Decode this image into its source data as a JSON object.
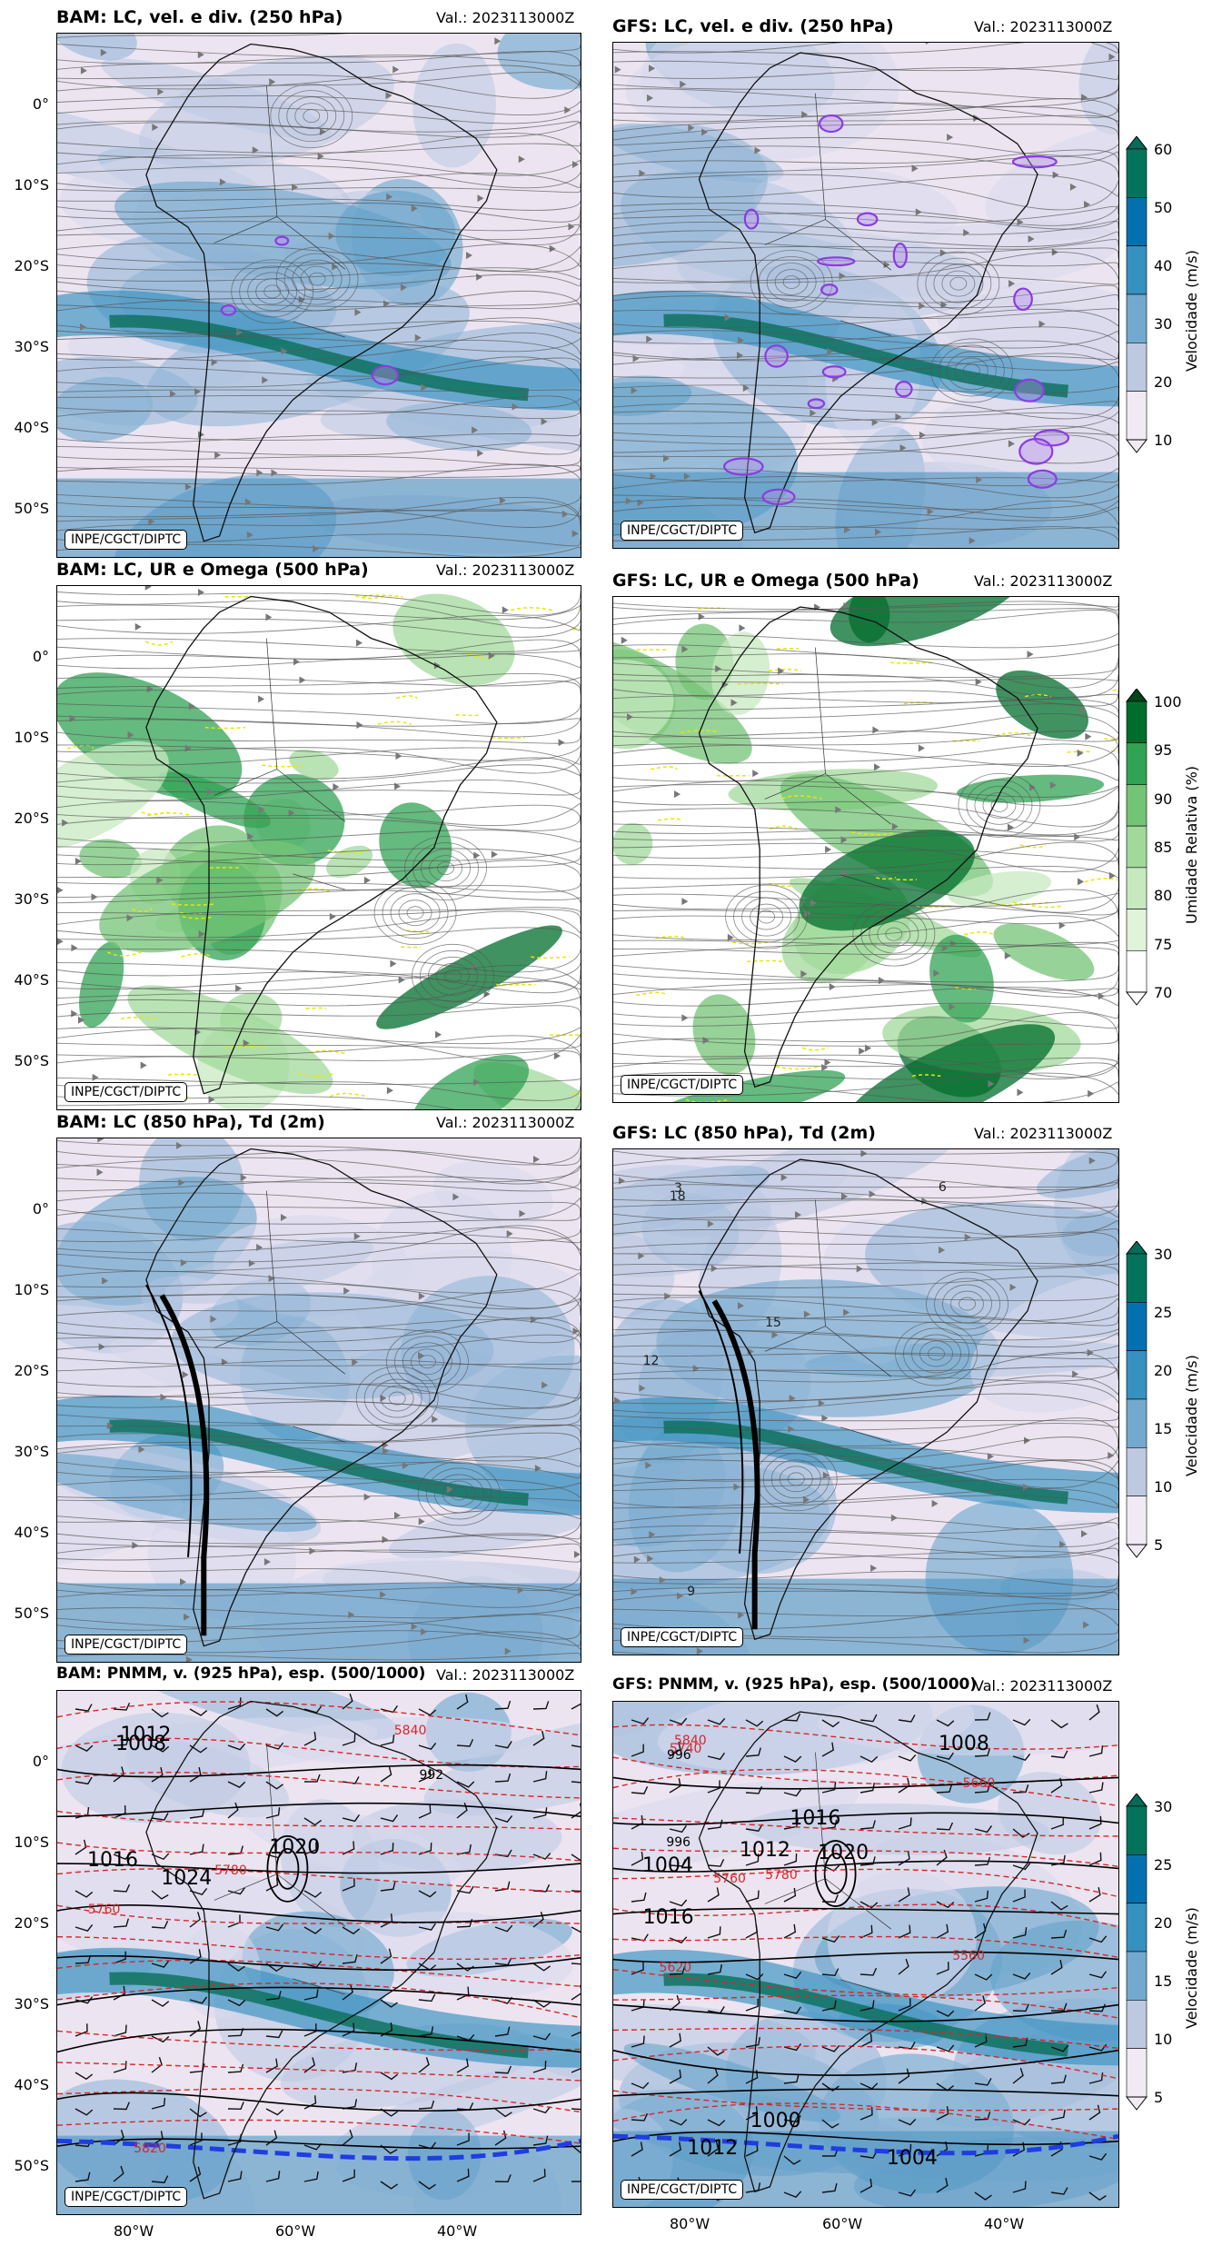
{
  "panels": [
    {
      "id": "p1",
      "title": "BAM: LC, vel. e div. (250 hPa)",
      "valid": "Val.: 2023113000Z",
      "credit": "INPE/CGCT/DIPTC",
      "field": "wind"
    },
    {
      "id": "p2",
      "title": "GFS: LC, vel. e div. (250 hPa)",
      "valid": "Val.: 2023113000Z",
      "credit": "INPE/CGCT/DIPTC",
      "field": "wind"
    },
    {
      "id": "p3",
      "title": "BAM: LC, UR e Omega (500 hPa)",
      "valid": "Val.: 2023113000Z",
      "credit": "INPE/CGCT/DIPTC",
      "field": "rh"
    },
    {
      "id": "p4",
      "title": "GFS: LC, UR e Omega (500 hPa)",
      "valid": "Val.: 2023113000Z",
      "credit": "INPE/CGCT/DIPTC",
      "field": "rh"
    },
    {
      "id": "p5",
      "title": "BAM: LC (850 hPa), Td (2m)",
      "valid": "Val.: 2023113000Z",
      "credit": "INPE/CGCT/DIPTC",
      "field": "wind"
    },
    {
      "id": "p6",
      "title": "GFS: LC (850 hPa), Td (2m)",
      "valid": "Val.: 2023113000Z",
      "credit": "INPE/CGCT/DIPTC",
      "field": "wind"
    },
    {
      "id": "p7",
      "title": "BAM: PNMM, v. (925 hPa), esp. (500/1000)",
      "valid": "Val.: 2023113000Z",
      "credit": "INPE/CGCT/DIPTC",
      "field": "pnmm"
    },
    {
      "id": "p8",
      "title": "GFS: PNMM, v. (925 hPa), esp. (500/1000)",
      "valid": "Val.: 2023113000Z",
      "credit": "INPE/CGCT/DIPTC",
      "field": "pnmm"
    }
  ],
  "lat_ticks": [
    "0°",
    "10°S",
    "20°S",
    "30°S",
    "40°S",
    "50°S"
  ],
  "lon_ticks": [
    "80°W",
    "60°W",
    "40°W"
  ],
  "colorbars": [
    {
      "label": "Velocidade (m/s)",
      "ticks": [
        "60",
        "50",
        "40",
        "30",
        "20",
        "10"
      ],
      "colors": [
        "#f1e9f3",
        "#bcc9e1",
        "#74a9cf",
        "#3690c0",
        "#0570b0",
        "#04735c",
        "#016c59"
      ]
    },
    {
      "label": "Umidade Relativa (%)",
      "ticks": [
        "100",
        "95",
        "90",
        "85",
        "80",
        "75",
        "70"
      ],
      "colors": [
        "#ffffff",
        "#e0f3db",
        "#c7e9c0",
        "#a1d99b",
        "#74c476",
        "#31a354",
        "#006d2c",
        "#00441b"
      ]
    },
    {
      "label": "Velocidade (m/s)",
      "ticks": [
        "30",
        "25",
        "20",
        "15",
        "10",
        "5"
      ],
      "colors": [
        "#f1e9f3",
        "#bcc9e1",
        "#74a9cf",
        "#3690c0",
        "#0570b0",
        "#04735c",
        "#016c59"
      ]
    },
    {
      "label": "Velocidade (m/s)",
      "ticks": [
        "30",
        "25",
        "20",
        "15",
        "10",
        "5"
      ],
      "colors": [
        "#f1e9f3",
        "#bcc9e1",
        "#74a9cf",
        "#3690c0",
        "#0570b0",
        "#04735c",
        "#016c59"
      ]
    }
  ],
  "contour_labels": {
    "p5": [],
    "p6": [
      "15",
      "18",
      "12",
      "9",
      "6",
      "3"
    ],
    "p7": [
      "5780",
      "1008",
      "5760",
      "5820",
      "5840",
      "1012",
      "1016",
      "1020",
      "1024",
      "992"
    ],
    "p8": [
      "5780",
      "5740",
      "1016",
      "1012",
      "1008",
      "5840",
      "1004",
      "1020",
      "5760",
      "5660",
      "5620",
      "5560",
      "1016",
      "1012",
      "1004",
      "1000",
      "996",
      "996"
    ]
  }
}
